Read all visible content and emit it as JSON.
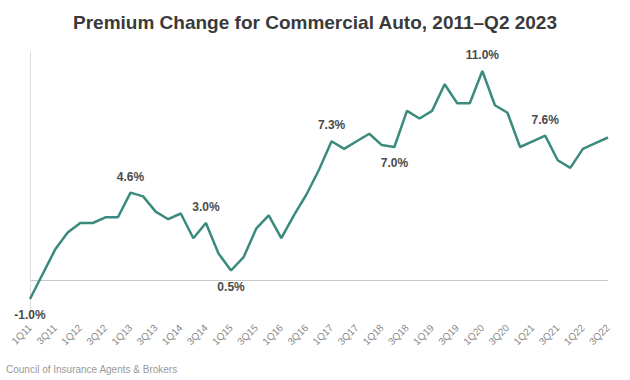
{
  "chart_data": {
    "type": "line",
    "title": "Premium Change for Commercial Auto, 2011–Q2 2023",
    "source": "Council of Insurance Agents & Brokers",
    "categories": [
      "1Q11",
      null,
      "3Q11",
      null,
      "1Q12",
      null,
      "3Q12",
      null,
      "1Q13",
      null,
      "3Q13",
      null,
      "1Q14",
      null,
      "3Q14",
      null,
      "1Q15",
      null,
      "3Q15",
      null,
      "1Q16",
      null,
      "3Q16",
      null,
      "1Q17",
      null,
      "3Q17",
      null,
      "1Q18",
      null,
      "3Q18",
      null,
      "1Q19",
      null,
      "3Q19",
      null,
      "1Q20",
      null,
      "3Q20",
      null,
      "1Q21",
      null,
      "3Q21",
      null,
      "1Q22",
      null,
      "3Q22"
    ],
    "values": [
      -1.0,
      0.3,
      1.6,
      2.5,
      3.0,
      3.0,
      3.3,
      3.3,
      4.6,
      4.4,
      3.6,
      3.2,
      3.5,
      2.2,
      3.0,
      1.4,
      0.5,
      1.2,
      2.7,
      3.4,
      2.2,
      3.4,
      4.5,
      5.8,
      7.3,
      6.9,
      7.3,
      7.7,
      7.1,
      7.0,
      8.9,
      8.5,
      8.9,
      10.3,
      9.3,
      9.3,
      11.0,
      9.2,
      8.8,
      7.0,
      7.3,
      7.6,
      6.3,
      5.9,
      6.9,
      7.2,
      7.5
    ],
    "annotations": [
      {
        "index": 0,
        "text": "-1.0%"
      },
      {
        "index": 8,
        "text": "4.6%"
      },
      {
        "index": 14,
        "text": "3.0%"
      },
      {
        "index": 16,
        "text": "0.5%"
      },
      {
        "index": 24,
        "text": "7.3%"
      },
      {
        "index": 29,
        "text": "7.0%"
      },
      {
        "index": 36,
        "text": "11.0%"
      },
      {
        "index": 41,
        "text": "7.6%"
      }
    ],
    "color": "#3b8a7e",
    "ylim": [
      -2,
      12
    ],
    "yticks": [
      0
    ],
    "grid": true,
    "tick_labels": "x",
    "marker": "none",
    "line_style": "solid"
  }
}
